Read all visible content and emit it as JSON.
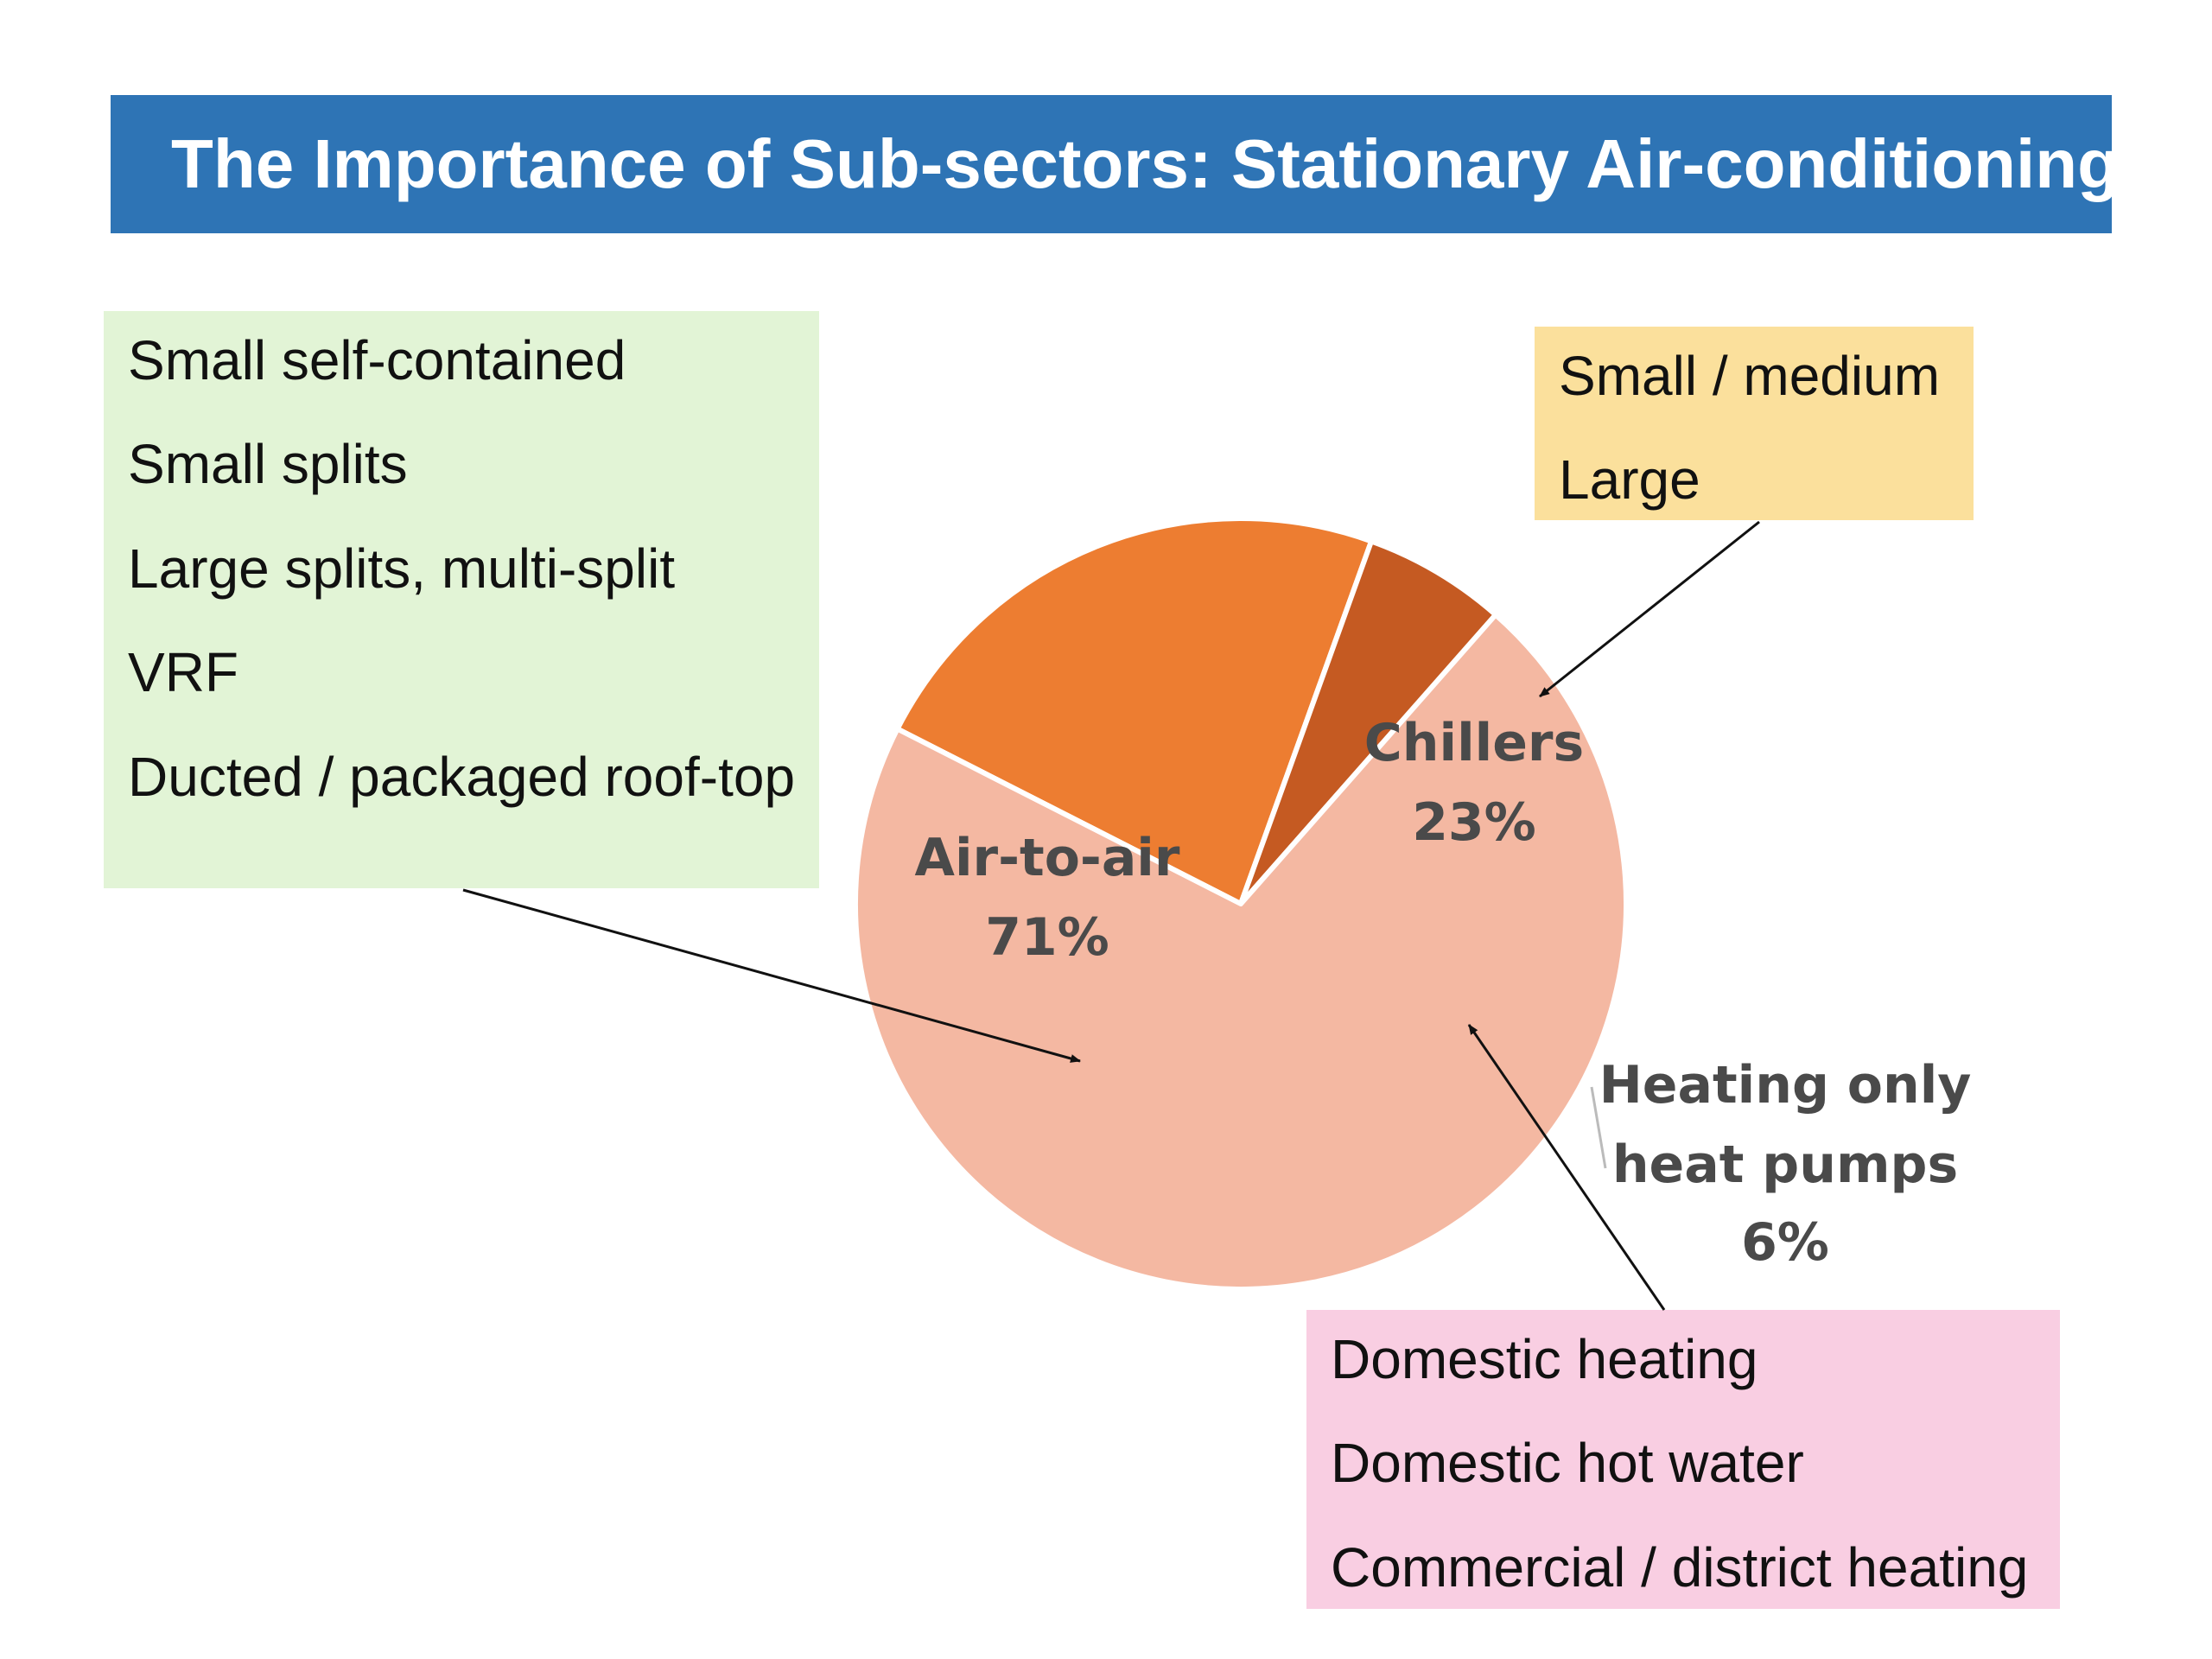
{
  "title": "The Importance of Sub-sectors: Stationary Air-conditioning",
  "boxes": {
    "air_to_air": {
      "items": [
        "Small self-contained",
        "Small splits",
        "Large splits, multi-split",
        "VRF",
        "Ducted / packaged roof-top"
      ]
    },
    "chillers": {
      "items": [
        "Small / medium",
        "Large"
      ]
    },
    "heat_pumps": {
      "items": [
        "Domestic heating",
        "Domestic hot water",
        "Commercial / district heating"
      ]
    }
  },
  "chart_data": {
    "type": "pie",
    "categories": [
      "Chillers",
      "Heating only heat pumps",
      "Air-to-air"
    ],
    "values": [
      23,
      6,
      71
    ],
    "labels": [
      {
        "name_lines": [
          "Chillers"
        ],
        "pct": "23%"
      },
      {
        "name_lines": [
          "Heating only",
          "heat pumps"
        ],
        "pct": "6%"
      },
      {
        "name_lines": [
          "Air-to-air"
        ],
        "pct": "71%"
      }
    ],
    "colors": [
      "#ed7d31",
      "#c55a22",
      "#f4b8a2"
    ]
  }
}
